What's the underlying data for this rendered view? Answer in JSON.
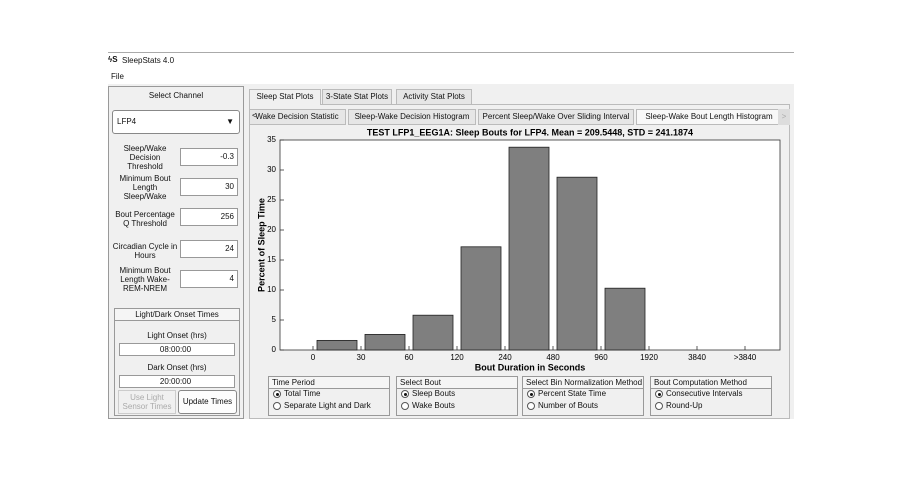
{
  "window": {
    "title": "SleepStats 4.0",
    "menu": [
      "File"
    ]
  },
  "left_panel": {
    "heading": "Select Channel",
    "channel": "LFP4",
    "fields": [
      {
        "label": "Sleep/Wake Decision Threshold",
        "value": "-0.3"
      },
      {
        "label": "Minimum Bout Length Sleep/Wake",
        "value": "30"
      },
      {
        "label": "Bout Percentage Q Threshold",
        "value": "256"
      },
      {
        "label": "Circadian Cycle in Hours",
        "value": "24"
      },
      {
        "label": "Minimum Bout Length Wake-REM-NREM",
        "value": "4"
      }
    ],
    "onset_group": {
      "title": "Light/Dark Onset Times",
      "light_label": "Light Onset (hrs)",
      "light_value": "08:00:00",
      "dark_label": "Dark Onset (hrs)",
      "dark_value": "20:00:00",
      "buttons": [
        "Use Light Sensor Times",
        "Update Times"
      ]
    }
  },
  "tabs": [
    "Sleep Stat Plots",
    "3-State Stat Plots",
    "Activity Stat Plots"
  ],
  "subtabs": [
    "Wake Decision Statistic",
    "Sleep-Wake Decision Histogram",
    "Percent Sleep/Wake Over Sliding Interval",
    "Sleep-Wake Bout Length Histogram"
  ],
  "plot": {
    "type": "bar",
    "title": "TEST LFP1_EEG1A: Sleep Bouts for LFP4. Mean = 209.5448, STD = 241.1874",
    "x_label": "Bout Duration in Seconds",
    "y_label": "Percent of Sleep Time",
    "bin_edges": [
      "0",
      "30",
      "60",
      "120",
      "240",
      "480",
      "960",
      "1920",
      "3840",
      ">3840"
    ],
    "values": [
      1.6,
      2.6,
      5.8,
      17.2,
      33.8,
      28.8,
      10.3,
      0,
      0
    ],
    "color": "#7f7f7f",
    "ylim": [
      0,
      35
    ],
    "yticks": [
      0,
      5,
      10,
      15,
      20,
      25,
      30,
      35
    ]
  },
  "options": [
    {
      "title": "Time Period",
      "choices": [
        "Total Time",
        "Separate Light and Dark"
      ],
      "selected": 0
    },
    {
      "title": "Select Bout",
      "choices": [
        "Sleep Bouts",
        "Wake Bouts"
      ],
      "selected": 0
    },
    {
      "title": "Select Bin Normalization Method",
      "choices": [
        "Percent State Time",
        "Number of Bouts"
      ],
      "selected": 0
    },
    {
      "title": "Bout Computation Method",
      "choices": [
        "Consecutive Intervals",
        "Round-Up"
      ],
      "selected": 0
    }
  ]
}
